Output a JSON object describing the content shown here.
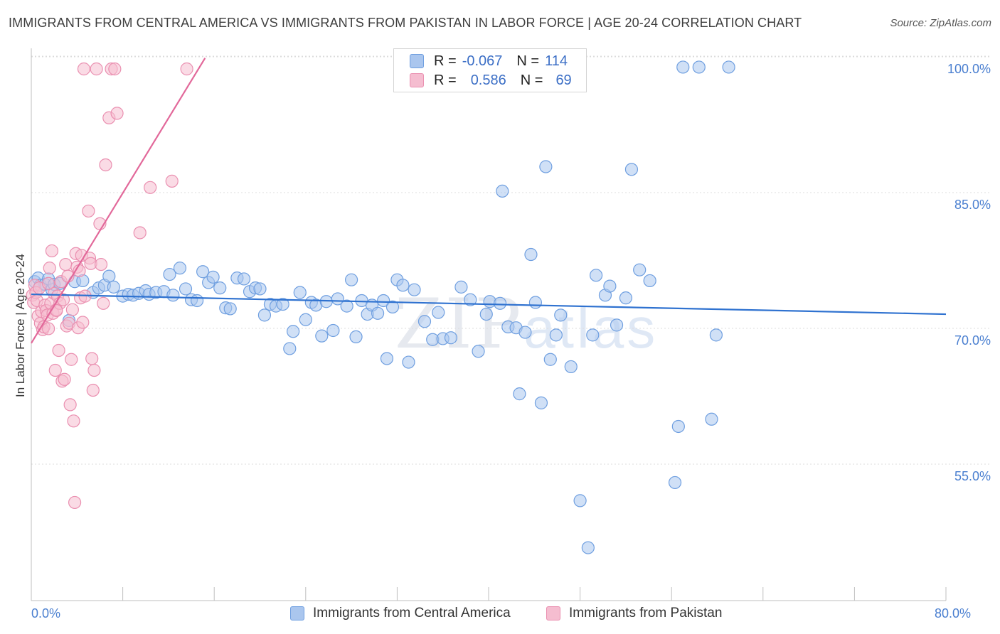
{
  "title": "IMMIGRANTS FROM CENTRAL AMERICA VS IMMIGRANTS FROM PAKISTAN IN LABOR FORCE | AGE 20-24 CORRELATION CHART",
  "source": "Source: ZipAtlas.com",
  "watermark": {
    "zip": "ZIP",
    "atlas": "atlas"
  },
  "legend": {
    "rows": [
      {
        "r_label": "R =",
        "r_value": "-0.067",
        "n_label": "N =",
        "n_value": "114",
        "color": "#6f9fe0"
      },
      {
        "r_label": "R =",
        "r_value": "0.586",
        "n_label": "N =",
        "n_value": "69",
        "color": "#ea8fb0"
      }
    ]
  },
  "chart_data": {
    "type": "scatter",
    "ylabel": "In Labor Force | Age 20-24",
    "xlim": [
      0,
      80
    ],
    "ylim": [
      40,
      102
    ],
    "x_ticks": [
      {
        "value": 0,
        "label": "0.0%"
      },
      {
        "value": 80,
        "label": "80.0%"
      }
    ],
    "y_ticks": [
      {
        "value": 100,
        "label": "100.0%"
      },
      {
        "value": 85,
        "label": "85.0%"
      },
      {
        "value": 70,
        "label": "70.0%"
      },
      {
        "value": 55,
        "label": "55.0%"
      }
    ],
    "grid": true,
    "legend_position": "top-center",
    "series": [
      {
        "name": "Immigrants from Central America",
        "color": "#6f9fe0",
        "fill": "#aac6ee",
        "trend": {
          "x": [
            0,
            80
          ],
          "y": [
            75.1,
            72.9
          ]
        },
        "points": [
          [
            0.3,
            76.5
          ],
          [
            0.6,
            76.9
          ],
          [
            0.8,
            76.1
          ],
          [
            1.2,
            76.2
          ],
          [
            1.5,
            76.8
          ],
          [
            1.8,
            75.6
          ],
          [
            2.0,
            76.2
          ],
          [
            2.5,
            76.3
          ],
          [
            3.3,
            72.2
          ],
          [
            3.8,
            76.5
          ],
          [
            4.5,
            76.6
          ],
          [
            5.4,
            75.3
          ],
          [
            5.9,
            75.8
          ],
          [
            6.4,
            76.1
          ],
          [
            6.8,
            77.1
          ],
          [
            7.2,
            75.9
          ],
          [
            8.0,
            74.9
          ],
          [
            8.5,
            75.1
          ],
          [
            8.9,
            75.0
          ],
          [
            9.4,
            75.2
          ],
          [
            10.0,
            75.5
          ],
          [
            10.3,
            75.1
          ],
          [
            10.9,
            75.3
          ],
          [
            11.6,
            75.4
          ],
          [
            12.1,
            77.3
          ],
          [
            12.4,
            75.0
          ],
          [
            13.0,
            78.0
          ],
          [
            13.5,
            75.7
          ],
          [
            14.0,
            74.5
          ],
          [
            14.5,
            74.4
          ],
          [
            15.0,
            77.6
          ],
          [
            15.5,
            76.4
          ],
          [
            15.9,
            77.0
          ],
          [
            16.5,
            75.8
          ],
          [
            17.0,
            73.6
          ],
          [
            17.4,
            73.5
          ],
          [
            18.0,
            76.9
          ],
          [
            18.6,
            76.8
          ],
          [
            19.1,
            75.4
          ],
          [
            19.6,
            75.8
          ],
          [
            20.0,
            75.7
          ],
          [
            20.4,
            72.8
          ],
          [
            20.9,
            74.0
          ],
          [
            21.4,
            73.8
          ],
          [
            22.0,
            74.0
          ],
          [
            22.6,
            69.1
          ],
          [
            22.9,
            71.0
          ],
          [
            23.5,
            75.3
          ],
          [
            24.0,
            72.3
          ],
          [
            24.5,
            74.2
          ],
          [
            24.9,
            73.9
          ],
          [
            25.4,
            70.5
          ],
          [
            25.8,
            74.3
          ],
          [
            26.4,
            71.1
          ],
          [
            26.8,
            74.6
          ],
          [
            27.6,
            73.8
          ],
          [
            28.0,
            76.7
          ],
          [
            28.4,
            70.4
          ],
          [
            28.9,
            74.4
          ],
          [
            29.4,
            72.9
          ],
          [
            29.8,
            73.9
          ],
          [
            30.3,
            73.0
          ],
          [
            30.8,
            74.4
          ],
          [
            31.1,
            68.0
          ],
          [
            31.6,
            73.7
          ],
          [
            32.0,
            76.7
          ],
          [
            32.5,
            76.1
          ],
          [
            33.0,
            67.6
          ],
          [
            33.5,
            75.6
          ],
          [
            34.4,
            72.1
          ],
          [
            35.1,
            70.1
          ],
          [
            35.6,
            73.1
          ],
          [
            36.0,
            70.2
          ],
          [
            36.7,
            70.3
          ],
          [
            37.6,
            75.9
          ],
          [
            38.4,
            74.5
          ],
          [
            39.1,
            68.8
          ],
          [
            39.8,
            72.9
          ],
          [
            40.1,
            74.3
          ],
          [
            41.0,
            74.1
          ],
          [
            41.2,
            86.5
          ],
          [
            41.7,
            71.5
          ],
          [
            42.4,
            71.4
          ],
          [
            42.7,
            64.1
          ],
          [
            43.2,
            70.9
          ],
          [
            43.7,
            79.5
          ],
          [
            44.1,
            74.2
          ],
          [
            44.6,
            63.1
          ],
          [
            45.0,
            89.2
          ],
          [
            45.4,
            67.9
          ],
          [
            45.9,
            70.6
          ],
          [
            46.3,
            72.8
          ],
          [
            47.2,
            67.1
          ],
          [
            48.0,
            52.3
          ],
          [
            48.7,
            47.1
          ],
          [
            49.1,
            70.6
          ],
          [
            49.4,
            77.2
          ],
          [
            50.2,
            75.0
          ],
          [
            50.6,
            76.0
          ],
          [
            51.2,
            71.7
          ],
          [
            52.0,
            74.7
          ],
          [
            52.5,
            88.9
          ],
          [
            53.2,
            77.8
          ],
          [
            54.1,
            76.6
          ],
          [
            56.3,
            54.3
          ],
          [
            56.6,
            60.5
          ],
          [
            57.0,
            100.2
          ],
          [
            58.4,
            100.2
          ],
          [
            59.5,
            61.3
          ],
          [
            59.9,
            70.6
          ],
          [
            61.0,
            100.2
          ]
        ]
      },
      {
        "name": "Immigrants from Pakistan",
        "color": "#ea8fb0",
        "fill": "#f5bdd0",
        "trend": {
          "x": [
            0,
            15.2
          ],
          "y": [
            69.7,
            101.2
          ]
        },
        "points": [
          [
            0.1,
            75.0
          ],
          [
            0.2,
            74.2
          ],
          [
            0.3,
            76.1
          ],
          [
            0.4,
            75.3
          ],
          [
            0.5,
            74.4
          ],
          [
            0.6,
            72.7
          ],
          [
            0.7,
            75.8
          ],
          [
            0.8,
            71.9
          ],
          [
            0.9,
            73.2
          ],
          [
            1.0,
            71.2
          ],
          [
            1.1,
            71.5
          ],
          [
            1.2,
            73.9
          ],
          [
            1.3,
            73.3
          ],
          [
            1.4,
            72.8
          ],
          [
            1.5,
            71.3
          ],
          [
            1.6,
            78.0
          ],
          [
            1.7,
            74.1
          ],
          [
            1.8,
            79.9
          ],
          [
            1.9,
            73.0
          ],
          [
            2.0,
            75.2
          ],
          [
            2.1,
            66.7
          ],
          [
            2.2,
            73.4
          ],
          [
            2.3,
            74.9
          ],
          [
            2.4,
            68.9
          ],
          [
            2.5,
            74.1
          ],
          [
            2.6,
            76.5
          ],
          [
            2.7,
            65.5
          ],
          [
            2.8,
            74.5
          ],
          [
            2.9,
            65.7
          ],
          [
            3.0,
            78.4
          ],
          [
            3.1,
            71.6
          ],
          [
            3.2,
            77.1
          ],
          [
            3.3,
            71.9
          ],
          [
            3.4,
            62.9
          ],
          [
            3.5,
            67.9
          ],
          [
            3.6,
            73.4
          ],
          [
            3.7,
            61.1
          ],
          [
            3.8,
            52.1
          ],
          [
            3.9,
            79.6
          ],
          [
            4.0,
            78.1
          ],
          [
            4.1,
            71.4
          ],
          [
            4.2,
            77.7
          ],
          [
            4.3,
            74.7
          ],
          [
            4.4,
            79.4
          ],
          [
            4.5,
            72.0
          ],
          [
            4.6,
            100.0
          ],
          [
            4.7,
            74.9
          ],
          [
            5.0,
            84.3
          ],
          [
            5.1,
            79.1
          ],
          [
            5.2,
            78.5
          ],
          [
            5.3,
            68.0
          ],
          [
            5.5,
            66.7
          ],
          [
            5.4,
            64.5
          ],
          [
            5.7,
            100.0
          ],
          [
            6.0,
            82.9
          ],
          [
            6.1,
            78.4
          ],
          [
            6.3,
            74.1
          ],
          [
            6.5,
            89.4
          ],
          [
            6.8,
            94.6
          ],
          [
            7.0,
            100.0
          ],
          [
            7.3,
            100.0
          ],
          [
            7.5,
            95.1
          ],
          [
            9.5,
            81.9
          ],
          [
            10.4,
            86.9
          ],
          [
            12.3,
            87.6
          ],
          [
            13.6,
            100.0
          ],
          [
            1.5,
            76.3
          ],
          [
            2.2,
            73.3
          ]
        ]
      }
    ]
  }
}
